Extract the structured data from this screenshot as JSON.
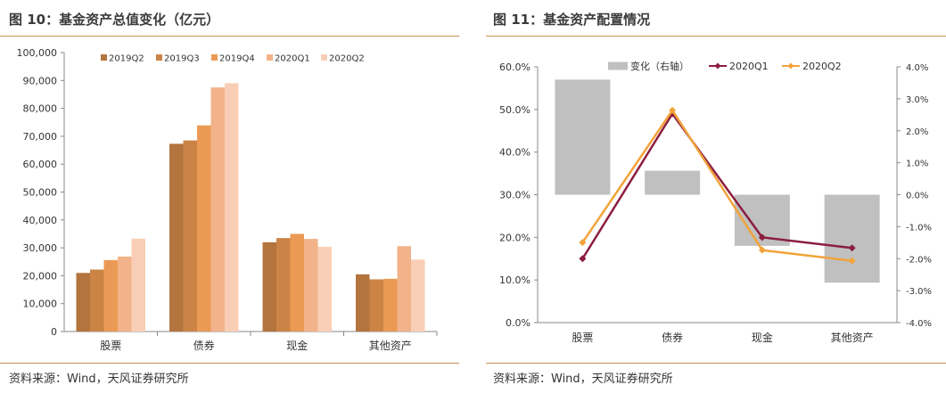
{
  "left": {
    "title": "图 10：基金资产总值变化（亿元）",
    "source": "资料来源：Wind，天风证券研究所"
  },
  "right": {
    "title": "图 11：基金资产配置情况",
    "source": "资料来源：Wind，天风证券研究所"
  },
  "chart_data": [
    {
      "type": "bar",
      "title": "基金资产总值变化（亿元）",
      "categories": [
        "股票",
        "债券",
        "现金",
        "其他资产"
      ],
      "ylim": [
        0,
        100000
      ],
      "yticks": [
        0,
        10000,
        20000,
        30000,
        40000,
        50000,
        60000,
        70000,
        80000,
        90000,
        100000
      ],
      "ytick_labels": [
        "0",
        "10,000",
        "20,000",
        "30,000",
        "40,000",
        "50,000",
        "60,000",
        "70,000",
        "80,000",
        "90,000",
        "100,000"
      ],
      "legend_position": "top",
      "grid": false,
      "series": [
        {
          "name": "2019Q2",
          "color": "#b3743e",
          "values": [
            21000,
            67300,
            32000,
            20500
          ]
        },
        {
          "name": "2019Q3",
          "color": "#cc8346",
          "values": [
            22200,
            68500,
            33500,
            18700
          ]
        },
        {
          "name": "2019Q4",
          "color": "#eb9a55",
          "values": [
            25600,
            73900,
            35000,
            18900
          ]
        },
        {
          "name": "2020Q1",
          "color": "#f2b38a",
          "values": [
            26900,
            87500,
            33200,
            30600
          ]
        },
        {
          "name": "2020Q2",
          "color": "#f8cfb6",
          "values": [
            33300,
            89000,
            30400,
            25800
          ]
        }
      ]
    },
    {
      "type": "bar+line",
      "title": "基金资产配置情况",
      "categories": [
        "股票",
        "债券",
        "现金",
        "其他资产"
      ],
      "ylim": [
        0,
        60
      ],
      "yticks": [
        0,
        10,
        20,
        30,
        40,
        50,
        60
      ],
      "ytick_labels": [
        "0.0%",
        "10.0%",
        "20.0%",
        "30.0%",
        "40.0%",
        "50.0%",
        "60.0%"
      ],
      "y2lim": [
        -4,
        4
      ],
      "y2ticks": [
        -4,
        -3,
        -2,
        -1,
        0,
        1,
        2,
        3,
        4
      ],
      "y2tick_labels": [
        "-4.0%",
        "-3.0%",
        "-2.0%",
        "-1.0%",
        "0.0%",
        "1.0%",
        "2.0%",
        "3.0%",
        "4.0%"
      ],
      "legend_position": "top",
      "grid": false,
      "bar_series": {
        "name": "变化（右轴）",
        "color": "#c0c0c0",
        "axis": "right",
        "values": [
          3.6,
          0.75,
          -1.6,
          -2.75
        ]
      },
      "series": [
        {
          "name": "2020Q1",
          "color": "#8b1e3f",
          "marker": "diamond",
          "values": [
            15.0,
            49.0,
            20.0,
            17.5
          ]
        },
        {
          "name": "2020Q2",
          "color": "#f2a33a",
          "marker": "diamond",
          "values": [
            18.8,
            49.8,
            17.0,
            14.5
          ]
        }
      ]
    }
  ]
}
